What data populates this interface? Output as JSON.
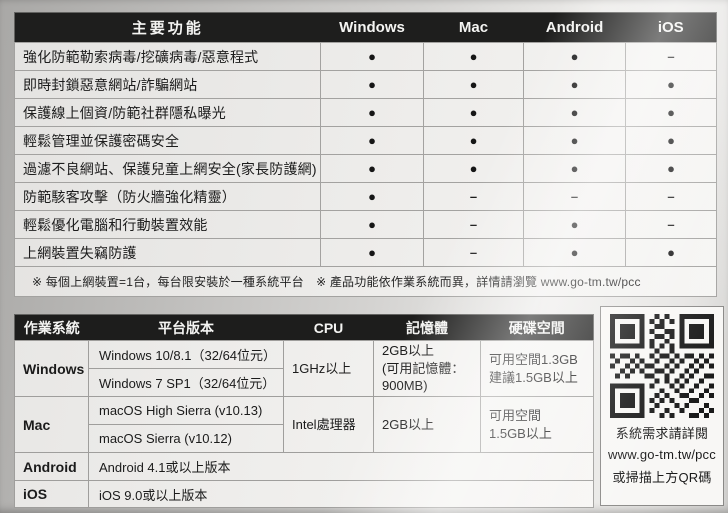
{
  "features_table": {
    "title": "主要功能",
    "platforms": [
      "Windows",
      "Mac",
      "Android",
      "iOS"
    ],
    "rows": [
      {
        "label": "強化防範勒索病毒/挖礦病毒/惡意程式",
        "cells": [
          "●",
          "●",
          "●",
          "–"
        ]
      },
      {
        "label": "即時封鎖惡意網站/詐騙網站",
        "cells": [
          "●",
          "●",
          "●",
          "●"
        ]
      },
      {
        "label": "保護線上個資/防範社群隱私曝光",
        "cells": [
          "●",
          "●",
          "●",
          "●"
        ]
      },
      {
        "label": "輕鬆管理並保護密碼安全",
        "cells": [
          "●",
          "●",
          "●",
          "●"
        ]
      },
      {
        "label": "過濾不良網站、保護兒童上網安全(家長防護網)",
        "cells": [
          "●",
          "●",
          "●",
          "●"
        ]
      },
      {
        "label": "防範駭客攻擊（防火牆強化精靈）",
        "cells": [
          "●",
          "–",
          "–",
          "–"
        ]
      },
      {
        "label": "輕鬆優化電腦和行動裝置效能",
        "cells": [
          "●",
          "–",
          "●",
          "–"
        ]
      },
      {
        "label": "上網裝置失竊防護",
        "cells": [
          "●",
          "–",
          "●",
          "●"
        ]
      }
    ],
    "footnote": "※ 每個上網裝置=1台，每台限安裝於一種系統平台　※ 產品功能依作業系統而異，詳情請瀏覽 www.go-tm.tw/pcc"
  },
  "requirements_table": {
    "headers": [
      "作業系統",
      "平台版本",
      "CPU",
      "記憶體",
      "硬碟空間"
    ],
    "windows": {
      "os": "Windows",
      "version1": "Windows 10/8.1（32/64位元）",
      "version2": "Windows 7 SP1（32/64位元）",
      "cpu": "1GHz以上",
      "memory": "2GB以上\n(可用記憶體：\n900MB)",
      "disk": "可用空間1.3GB\n建議1.5GB以上"
    },
    "mac": {
      "os": "Mac",
      "version1": "macOS High Sierra (v10.13)",
      "version2": "macOS Sierra (v10.12)",
      "cpu": "Intel處理器",
      "memory": "2GB以上",
      "disk": "可用空間\n1.5GB以上"
    },
    "android": {
      "os": "Android",
      "version": "Android 4.1或以上版本"
    },
    "ios": {
      "os": "iOS",
      "version": "iOS 9.0或以上版本"
    }
  },
  "qr_panel": {
    "line1": "系統需求請詳閱",
    "line2": "www.go-tm.tw/pcc",
    "line3": "或掃描上方QR碼"
  },
  "colors": {
    "header_bg": "#1e1e1d",
    "header_text": "#f4f4f2",
    "table_border": "#636361",
    "cell_line": "#a3a2a0"
  }
}
